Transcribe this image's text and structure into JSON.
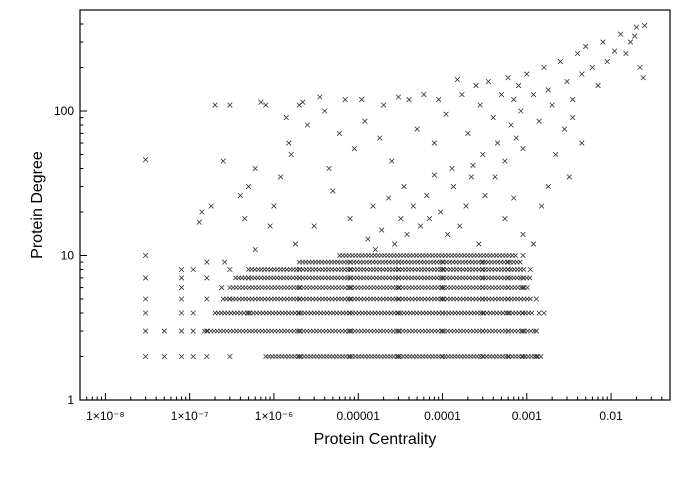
{
  "chart_data": {
    "type": "scatter",
    "xlabel": "Protein Centrality",
    "ylabel": "Protein Degree",
    "x_scale": "log",
    "y_scale": "log",
    "xlim": [
      5e-09,
      0.05
    ],
    "ylim": [
      1,
      500
    ],
    "grid": false,
    "marker": "x",
    "marker_color": "#333333",
    "x_ticks": [
      {
        "value": 1e-08,
        "label": "1×10⁻⁸"
      },
      {
        "value": 1e-07,
        "label": "1×10⁻⁷"
      },
      {
        "value": 1e-06,
        "label": "1×10⁻⁶"
      },
      {
        "value": 1e-05,
        "label": "0.00001"
      },
      {
        "value": 0.0001,
        "label": "0.0001"
      },
      {
        "value": 0.001,
        "label": "0.001"
      },
      {
        "value": 0.01,
        "label": "0.01"
      }
    ],
    "y_ticks": [
      {
        "value": 1,
        "label": "1"
      },
      {
        "value": 10,
        "label": "10"
      },
      {
        "value": 100,
        "label": "100"
      }
    ],
    "points": [
      [
        3e-08,
        2
      ],
      [
        3e-08,
        3
      ],
      [
        3e-08,
        4
      ],
      [
        3e-08,
        5
      ],
      [
        3e-08,
        7
      ],
      [
        3e-08,
        10
      ],
      [
        3e-08,
        46
      ],
      [
        5e-08,
        2
      ],
      [
        5e-08,
        3
      ],
      [
        8e-08,
        2
      ],
      [
        8e-08,
        3
      ],
      [
        8e-08,
        4
      ],
      [
        8e-08,
        5
      ],
      [
        8e-08,
        6
      ],
      [
        8e-08,
        7
      ],
      [
        8e-08,
        8
      ],
      [
        1.1e-07,
        2
      ],
      [
        1.1e-07,
        3
      ],
      [
        1.1e-07,
        4
      ],
      [
        1.1e-07,
        8
      ],
      [
        1.3e-07,
        17
      ],
      [
        1.4e-07,
        20
      ],
      [
        1.6e-07,
        2
      ],
      [
        1.6e-07,
        3
      ],
      [
        1.6e-07,
        5
      ],
      [
        1.6e-07,
        7
      ],
      [
        1.6e-07,
        9
      ],
      [
        1.8e-07,
        22
      ],
      [
        2e-07,
        110
      ],
      [
        2.5e-07,
        45
      ],
      [
        3e-07,
        110
      ],
      [
        2.4e-07,
        6
      ],
      [
        2.6e-07,
        9
      ],
      [
        3e-07,
        2
      ],
      [
        3e-07,
        5
      ],
      [
        3e-07,
        8
      ],
      [
        4e-07,
        26
      ],
      [
        4.5e-07,
        18
      ],
      [
        5e-07,
        30
      ],
      [
        5e-07,
        4
      ],
      [
        5e-07,
        7
      ],
      [
        6e-07,
        11
      ],
      [
        7e-07,
        115
      ],
      [
        8e-07,
        110
      ],
      [
        6e-07,
        40
      ],
      [
        9e-07,
        16
      ],
      [
        1e-06,
        22
      ],
      [
        1.2e-06,
        35
      ],
      [
        1.4e-06,
        90
      ],
      [
        1.5e-06,
        60
      ],
      [
        1.6e-06,
        50
      ],
      [
        1.8e-06,
        12
      ],
      [
        2e-06,
        110
      ],
      [
        2.2e-06,
        115
      ],
      [
        2.5e-06,
        80
      ],
      [
        3e-06,
        16
      ],
      [
        3.5e-06,
        125
      ],
      [
        4e-06,
        100
      ],
      [
        4.5e-06,
        40
      ],
      [
        5e-06,
        28
      ],
      [
        6e-06,
        70
      ],
      [
        7e-06,
        120
      ],
      [
        8e-06,
        18
      ],
      [
        9e-06,
        55
      ],
      [
        1.1e-05,
        120
      ],
      [
        1.2e-05,
        85
      ],
      [
        1.5e-05,
        22
      ],
      [
        1.8e-05,
        65
      ],
      [
        2e-05,
        110
      ],
      [
        2.5e-05,
        45
      ],
      [
        3e-05,
        125
      ],
      [
        3.5e-05,
        30
      ],
      [
        4e-05,
        120
      ],
      [
        5e-05,
        75
      ],
      [
        6e-05,
        130
      ],
      [
        7e-05,
        18
      ],
      [
        8e-05,
        60
      ],
      [
        9e-05,
        120
      ],
      [
        0.00011,
        95
      ],
      [
        0.00013,
        40
      ],
      [
        0.00015,
        165
      ],
      [
        0.00017,
        130
      ],
      [
        0.0002,
        70
      ],
      [
        0.00022,
        35
      ],
      [
        0.00025,
        150
      ],
      [
        0.00028,
        110
      ],
      [
        0.0003,
        50
      ],
      [
        0.00035,
        160
      ],
      [
        0.0004,
        90
      ],
      [
        0.00045,
        60
      ],
      [
        0.0005,
        130
      ],
      [
        0.00055,
        45
      ],
      [
        0.0006,
        170
      ],
      [
        0.00065,
        80
      ],
      [
        0.0007,
        120
      ],
      [
        0.00075,
        65
      ],
      [
        0.0008,
        150
      ],
      [
        0.00085,
        100
      ],
      [
        0.0009,
        55
      ],
      [
        0.001,
        180
      ],
      [
        0.0012,
        130
      ],
      [
        0.0014,
        85
      ],
      [
        0.0016,
        200
      ],
      [
        0.0018,
        140
      ],
      [
        0.002,
        110
      ],
      [
        0.0025,
        220
      ],
      [
        0.003,
        160
      ],
      [
        0.0035,
        90
      ],
      [
        0.004,
        250
      ],
      [
        0.0045,
        180
      ],
      [
        0.005,
        280
      ],
      [
        0.006,
        200
      ],
      [
        0.007,
        150
      ],
      [
        0.008,
        300
      ],
      [
        0.009,
        220
      ],
      [
        0.011,
        260
      ],
      [
        0.013,
        340
      ],
      [
        0.015,
        250
      ],
      [
        0.017,
        300
      ],
      [
        0.02,
        380
      ],
      [
        0.025,
        390
      ],
      [
        0.022,
        200
      ],
      [
        0.024,
        170
      ],
      [
        0.019,
        330
      ],
      [
        0.0035,
        120
      ],
      [
        0.0045,
        60
      ],
      [
        0.0032,
        35
      ],
      [
        0.0028,
        75
      ],
      [
        0.0022,
        50
      ],
      [
        0.0018,
        30
      ],
      [
        0.0014,
        4
      ],
      [
        0.0015,
        22
      ],
      [
        0.0012,
        12
      ],
      [
        0.0011,
        8
      ],
      [
        0.0009,
        14
      ],
      [
        0.0007,
        25
      ],
      [
        0.00055,
        18
      ],
      [
        0.00042,
        35
      ],
      [
        0.00032,
        26
      ],
      [
        0.00027,
        12
      ],
      [
        0.00023,
        42
      ],
      [
        0.00019,
        22
      ],
      [
        0.00016,
        16
      ],
      [
        0.000135,
        30
      ],
      [
        0.000115,
        14
      ],
      [
        9.5e-05,
        20
      ],
      [
        8e-05,
        36
      ],
      [
        6.5e-05,
        26
      ],
      [
        5.5e-05,
        16
      ],
      [
        4.5e-05,
        22
      ],
      [
        3.8e-05,
        14
      ],
      [
        3.2e-05,
        18
      ],
      [
        2.7e-05,
        12
      ],
      [
        2.3e-05,
        25
      ],
      [
        1.9e-05,
        15
      ],
      [
        1.6e-05,
        11
      ],
      [
        1.3e-05,
        13
      ],
      [
        2e-06,
        2
      ],
      [
        2e-06,
        3
      ],
      [
        2e-06,
        4
      ],
      [
        2e-06,
        5
      ],
      [
        2e-06,
        6
      ],
      [
        2e-06,
        7
      ],
      [
        2e-06,
        8
      ],
      [
        8e-06,
        2
      ],
      [
        8e-06,
        3
      ],
      [
        8e-06,
        4
      ],
      [
        8e-06,
        5
      ],
      [
        8e-06,
        6
      ],
      [
        8e-06,
        7
      ],
      [
        8e-06,
        8
      ],
      [
        8e-06,
        9
      ],
      [
        3e-05,
        2
      ],
      [
        3e-05,
        3
      ],
      [
        3e-05,
        4
      ],
      [
        3e-05,
        5
      ],
      [
        3e-05,
        6
      ],
      [
        3e-05,
        7
      ],
      [
        3e-05,
        8
      ],
      [
        3e-05,
        9
      ],
      [
        0.0001,
        2
      ],
      [
        0.0001,
        3
      ],
      [
        0.0001,
        4
      ],
      [
        0.0001,
        5
      ],
      [
        0.0001,
        6
      ],
      [
        0.0001,
        7
      ],
      [
        0.0001,
        8
      ],
      [
        0.0001,
        9
      ],
      [
        0.0003,
        2
      ],
      [
        0.0003,
        3
      ],
      [
        0.0003,
        4
      ],
      [
        0.0003,
        5
      ],
      [
        0.0003,
        6
      ],
      [
        0.0003,
        7
      ],
      [
        0.0003,
        8
      ],
      [
        0.0003,
        9
      ],
      [
        0.0006,
        2
      ],
      [
        0.0006,
        3
      ],
      [
        0.0006,
        4
      ],
      [
        0.0006,
        5
      ],
      [
        0.0006,
        6
      ],
      [
        0.0006,
        7
      ],
      [
        0.0006,
        8
      ],
      [
        0.0006,
        9
      ],
      [
        0.0009,
        2
      ],
      [
        0.0009,
        3
      ],
      [
        0.0009,
        4
      ],
      [
        0.0009,
        6
      ],
      [
        0.0009,
        7
      ],
      [
        0.0009,
        10
      ],
      [
        0.0013,
        2
      ],
      [
        0.0013,
        3
      ],
      [
        0.0013,
        5
      ],
      [
        0.0016,
        4
      ]
    ]
  }
}
